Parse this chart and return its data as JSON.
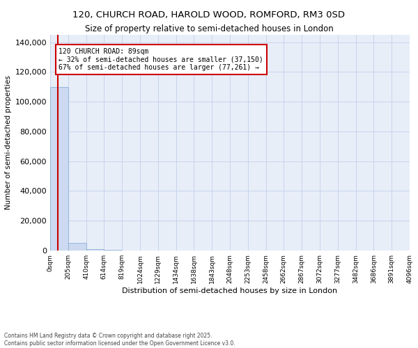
{
  "title_line1": "120, CHURCH ROAD, HAROLD WOOD, ROMFORD, RM3 0SD",
  "title_line2": "Size of property relative to semi-detached houses in London",
  "xlabel": "Distribution of semi-detached houses by size in London",
  "ylabel": "Number of semi-detached properties",
  "property_size": 89,
  "annotation_text_line1": "120 CHURCH ROAD: 89sqm",
  "annotation_text_line2": "← 32% of semi-detached houses are smaller (37,150)",
  "annotation_text_line3": "67% of semi-detached houses are larger (77,261) →",
  "bin_edges": [
    0,
    205,
    410,
    614,
    819,
    1024,
    1229,
    1434,
    1638,
    1843,
    2048,
    2253,
    2458,
    2662,
    2867,
    3072,
    3277,
    3482,
    3686,
    3891,
    4096
  ],
  "bar_heights": [
    110000,
    5000,
    800,
    250,
    130,
    80,
    55,
    40,
    30,
    22,
    16,
    12,
    9,
    7,
    5,
    4,
    3,
    2,
    2,
    1
  ],
  "bar_color": "#ccd9f0",
  "bar_edge_color": "#8ab0d8",
  "grid_color": "#c8d4ec",
  "bg_color": "#e8eef8",
  "red_line_color": "#cc0000",
  "ylim": [
    0,
    145000
  ],
  "yticks": [
    0,
    20000,
    40000,
    60000,
    80000,
    100000,
    120000,
    140000
  ],
  "tick_labels": [
    "0sqm",
    "205sqm",
    "410sqm",
    "614sqm",
    "819sqm",
    "1024sqm",
    "1229sqm",
    "1434sqm",
    "1638sqm",
    "1843sqm",
    "2048sqm",
    "2253sqm",
    "2458sqm",
    "2662sqm",
    "2867sqm",
    "3072sqm",
    "3277sqm",
    "3482sqm",
    "3686sqm",
    "3891sqm",
    "4096sqm"
  ],
  "footnote_line1": "Contains HM Land Registry data © Crown copyright and database right 2025.",
  "footnote_line2": "Contains public sector information licensed under the Open Government Licence v3.0."
}
